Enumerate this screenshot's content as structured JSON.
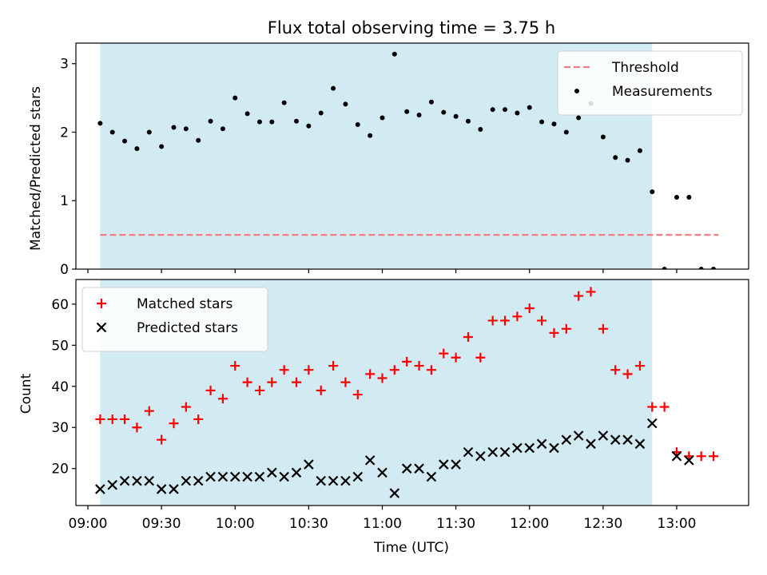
{
  "chart_data": {
    "type": "scatter",
    "title": "Flux total observing time = 3.75 h",
    "xlabel": "Time (UTC)",
    "x_ticks": [
      "09:00",
      "09:30",
      "10:00",
      "10:30",
      "11:00",
      "11:30",
      "12:00",
      "12:30",
      "13:00"
    ],
    "observing_window": [
      "09:05",
      "12:50"
    ],
    "panels": [
      {
        "ylabel": "Matched/Predicted stars",
        "ylim": [
          0,
          3.3
        ],
        "yticks": [
          "0",
          "1",
          "2",
          "3"
        ],
        "legend_position": "top-right",
        "threshold": {
          "name": "Threshold",
          "value": 0.5,
          "x_range": [
            "09:05",
            "13:17"
          ],
          "color": "#f08080"
        },
        "series": [
          {
            "name": "Measurements",
            "marker": "dot",
            "color": "#000000",
            "points": [
              [
                "09:05",
                2.13
              ],
              [
                "09:10",
                2.0
              ],
              [
                "09:15",
                1.87
              ],
              [
                "09:20",
                1.76
              ],
              [
                "09:25",
                2.0
              ],
              [
                "09:30",
                1.79
              ],
              [
                "09:35",
                2.07
              ],
              [
                "09:40",
                2.05
              ],
              [
                "09:45",
                1.88
              ],
              [
                "09:50",
                2.16
              ],
              [
                "09:55",
                2.05
              ],
              [
                "10:00",
                2.5
              ],
              [
                "10:05",
                2.27
              ],
              [
                "10:10",
                2.15
              ],
              [
                "10:15",
                2.15
              ],
              [
                "10:20",
                2.43
              ],
              [
                "10:25",
                2.16
              ],
              [
                "10:30",
                2.09
              ],
              [
                "10:35",
                2.28
              ],
              [
                "10:40",
                2.64
              ],
              [
                "10:45",
                2.41
              ],
              [
                "10:50",
                2.11
              ],
              [
                "10:55",
                1.95
              ],
              [
                "11:00",
                2.21
              ],
              [
                "11:05",
                3.14
              ],
              [
                "11:10",
                2.3
              ],
              [
                "11:15",
                2.25
              ],
              [
                "11:20",
                2.44
              ],
              [
                "11:25",
                2.29
              ],
              [
                "11:30",
                2.23
              ],
              [
                "11:35",
                2.16
              ],
              [
                "11:40",
                2.04
              ],
              [
                "11:45",
                2.33
              ],
              [
                "11:50",
                2.33
              ],
              [
                "11:55",
                2.28
              ],
              [
                "12:00",
                2.36
              ],
              [
                "12:05",
                2.15
              ],
              [
                "12:10",
                2.12
              ],
              [
                "12:15",
                2.0
              ],
              [
                "12:20",
                2.21
              ],
              [
                "12:25",
                2.42
              ],
              [
                "12:30",
                1.93
              ],
              [
                "12:35",
                1.63
              ],
              [
                "12:40",
                1.59
              ],
              [
                "12:45",
                1.73
              ],
              [
                "12:50",
                1.13
              ],
              [
                "12:55",
                0.0
              ],
              [
                "13:00",
                1.05
              ],
              [
                "13:05",
                1.05
              ],
              [
                "13:10",
                0.0
              ],
              [
                "13:15",
                0.0
              ]
            ]
          }
        ]
      },
      {
        "ylabel": "Count",
        "ylim": [
          11,
          66
        ],
        "yticks": [
          "20",
          "30",
          "40",
          "50",
          "60"
        ],
        "legend_position": "top-left",
        "series": [
          {
            "name": "Matched stars",
            "marker": "plus",
            "color": "#ff0000",
            "points": [
              [
                "09:05",
                32
              ],
              [
                "09:10",
                32
              ],
              [
                "09:15",
                32
              ],
              [
                "09:20",
                30
              ],
              [
                "09:25",
                34
              ],
              [
                "09:30",
                27
              ],
              [
                "09:35",
                31
              ],
              [
                "09:40",
                35
              ],
              [
                "09:45",
                32
              ],
              [
                "09:50",
                39
              ],
              [
                "09:55",
                37
              ],
              [
                "10:00",
                45
              ],
              [
                "10:05",
                41
              ],
              [
                "10:10",
                39
              ],
              [
                "10:15",
                41
              ],
              [
                "10:20",
                44
              ],
              [
                "10:25",
                41
              ],
              [
                "10:30",
                44
              ],
              [
                "10:35",
                39
              ],
              [
                "10:40",
                45
              ],
              [
                "10:45",
                41
              ],
              [
                "10:50",
                38
              ],
              [
                "10:55",
                43
              ],
              [
                "11:00",
                42
              ],
              [
                "11:05",
                44
              ],
              [
                "11:10",
                46
              ],
              [
                "11:15",
                45
              ],
              [
                "11:20",
                44
              ],
              [
                "11:25",
                48
              ],
              [
                "11:30",
                47
              ],
              [
                "11:35",
                52
              ],
              [
                "11:40",
                47
              ],
              [
                "11:45",
                56
              ],
              [
                "11:50",
                56
              ],
              [
                "11:55",
                57
              ],
              [
                "12:00",
                59
              ],
              [
                "12:05",
                56
              ],
              [
                "12:10",
                53
              ],
              [
                "12:15",
                54
              ],
              [
                "12:20",
                62
              ],
              [
                "12:25",
                63
              ],
              [
                "12:30",
                54
              ],
              [
                "12:35",
                44
              ],
              [
                "12:40",
                43
              ],
              [
                "12:45",
                45
              ],
              [
                "12:50",
                35
              ],
              [
                "12:55",
                35
              ],
              [
                "13:00",
                24
              ],
              [
                "13:05",
                23
              ],
              [
                "13:10",
                23
              ],
              [
                "13:15",
                23
              ]
            ]
          },
          {
            "name": "Predicted stars",
            "marker": "x",
            "color": "#000000",
            "points": [
              [
                "09:05",
                15
              ],
              [
                "09:10",
                16
              ],
              [
                "09:15",
                17
              ],
              [
                "09:20",
                17
              ],
              [
                "09:25",
                17
              ],
              [
                "09:30",
                15
              ],
              [
                "09:35",
                15
              ],
              [
                "09:40",
                17
              ],
              [
                "09:45",
                17
              ],
              [
                "09:50",
                18
              ],
              [
                "09:55",
                18
              ],
              [
                "10:00",
                18
              ],
              [
                "10:05",
                18
              ],
              [
                "10:10",
                18
              ],
              [
                "10:15",
                19
              ],
              [
                "10:20",
                18
              ],
              [
                "10:25",
                19
              ],
              [
                "10:30",
                21
              ],
              [
                "10:35",
                17
              ],
              [
                "10:40",
                17
              ],
              [
                "10:45",
                17
              ],
              [
                "10:50",
                18
              ],
              [
                "10:55",
                22
              ],
              [
                "11:00",
                19
              ],
              [
                "11:05",
                14
              ],
              [
                "11:10",
                20
              ],
              [
                "11:15",
                20
              ],
              [
                "11:20",
                18
              ],
              [
                "11:25",
                21
              ],
              [
                "11:30",
                21
              ],
              [
                "11:35",
                24
              ],
              [
                "11:40",
                23
              ],
              [
                "11:45",
                24
              ],
              [
                "11:50",
                24
              ],
              [
                "11:55",
                25
              ],
              [
                "12:00",
                25
              ],
              [
                "12:05",
                26
              ],
              [
                "12:10",
                25
              ],
              [
                "12:15",
                27
              ],
              [
                "12:20",
                28
              ],
              [
                "12:25",
                26
              ],
              [
                "12:30",
                28
              ],
              [
                "12:35",
                27
              ],
              [
                "12:40",
                27
              ],
              [
                "12:45",
                26
              ],
              [
                "12:50",
                31
              ],
              [
                "13:00",
                23
              ],
              [
                "13:05",
                22
              ]
            ]
          }
        ]
      }
    ],
    "colors": {
      "window_fill": "#add8e6",
      "axes": "#000000"
    }
  }
}
